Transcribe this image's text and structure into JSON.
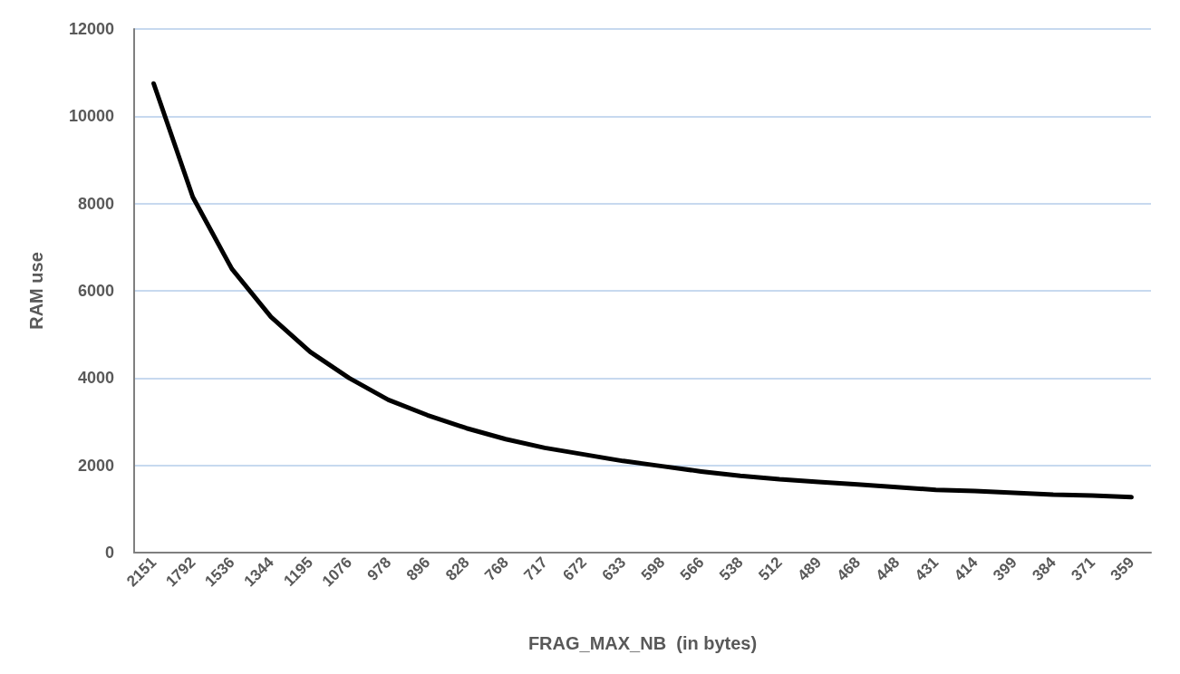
{
  "chart_data": {
    "type": "line",
    "xlabel": "FRAG_MAX_NB  (in bytes)",
    "ylabel": "RAM use",
    "categories": [
      "2151",
      "1792",
      "1536",
      "1344",
      "1195",
      "1076",
      "978",
      "896",
      "828",
      "768",
      "717",
      "672",
      "633",
      "598",
      "566",
      "538",
      "512",
      "489",
      "468",
      "448",
      "431",
      "414",
      "399",
      "384",
      "371",
      "359"
    ],
    "series": [
      {
        "color": "#000000",
        "values": [
          10750,
          8150,
          6500,
          5400,
          4600,
          4000,
          3500,
          3150,
          2850,
          2600,
          2400,
          2250,
          2100,
          1980,
          1860,
          1760,
          1680,
          1620,
          1560,
          1500,
          1440,
          1410,
          1370,
          1330,
          1310,
          1270
        ]
      }
    ],
    "ylim": [
      0,
      12000
    ],
    "yticks": [
      0,
      2000,
      4000,
      6000,
      8000,
      10000,
      12000
    ],
    "grid": "y",
    "marker": "none",
    "line_style": "solid"
  }
}
